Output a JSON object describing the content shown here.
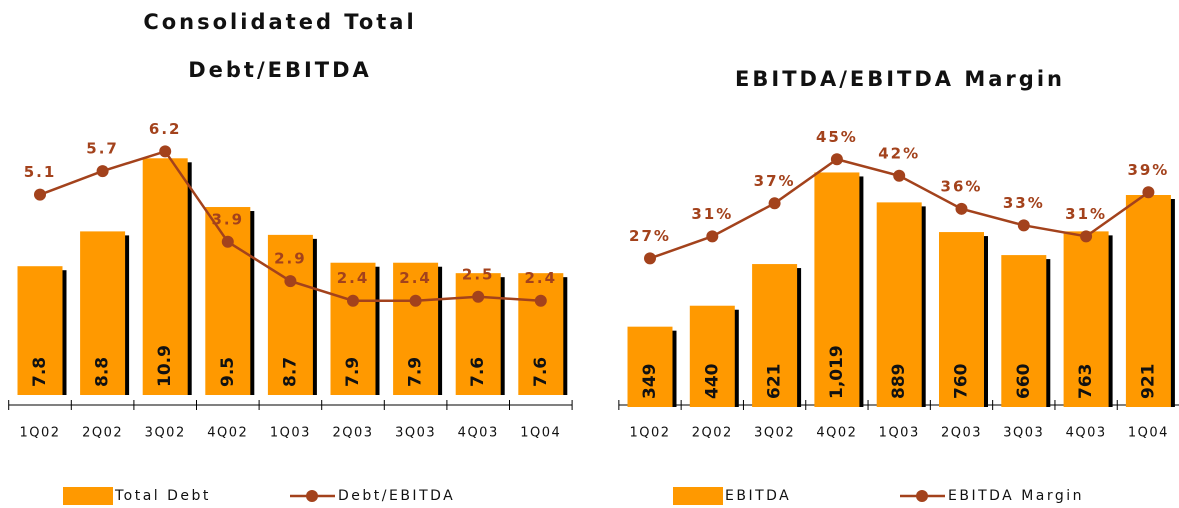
{
  "chart_data": [
    {
      "type": "bar",
      "title": "Consolidated Total Debt/EBITDA",
      "categories": [
        "1Q02",
        "2Q02",
        "3Q02",
        "4Q02",
        "1Q03",
        "2Q03",
        "3Q03",
        "4Q03",
        "1Q04"
      ],
      "series": [
        {
          "name": "Total Debt",
          "type": "bar",
          "color": "#ff9900",
          "values": [
            7.8,
            8.8,
            10.9,
            9.5,
            8.7,
            7.9,
            7.9,
            7.6,
            7.6
          ]
        },
        {
          "name": "Debt/EBITDA",
          "type": "line",
          "axis": "y2",
          "color": "#a3421c",
          "values": [
            5.1,
            5.7,
            6.2,
            3.9,
            2.9,
            2.4,
            2.4,
            2.5,
            2.4
          ]
        }
      ],
      "ylim": [
        4.1,
        12.0
      ],
      "y2lim": [
        0,
        7.0
      ]
    },
    {
      "type": "bar",
      "title": "EBITDA/EBITDA Margin",
      "categories": [
        "1Q02",
        "2Q02",
        "3Q02",
        "4Q02",
        "1Q03",
        "2Q03",
        "3Q03",
        "4Q03",
        "1Q04"
      ],
      "series": [
        {
          "name": "EBITDA",
          "type": "bar",
          "color": "#ff9900",
          "values": [
            349,
            440,
            621,
            1019,
            889,
            760,
            660,
            763,
            921
          ],
          "value_labels": [
            "349",
            "440",
            "621",
            "1,019",
            "889",
            "760",
            "660",
            "763",
            "921"
          ]
        },
        {
          "name": "EBITDA Margin",
          "type": "line",
          "axis": "y2",
          "color": "#a3421c",
          "values": [
            27,
            31,
            37,
            45,
            42,
            36,
            33,
            31,
            39
          ],
          "value_labels": [
            "27%",
            "31%",
            "37%",
            "45%",
            "42%",
            "36%",
            "33%",
            "31%",
            "39%"
          ]
        }
      ],
      "ylim": [
        0,
        1160
      ],
      "y2lim": [
        0,
        48.5
      ]
    }
  ]
}
